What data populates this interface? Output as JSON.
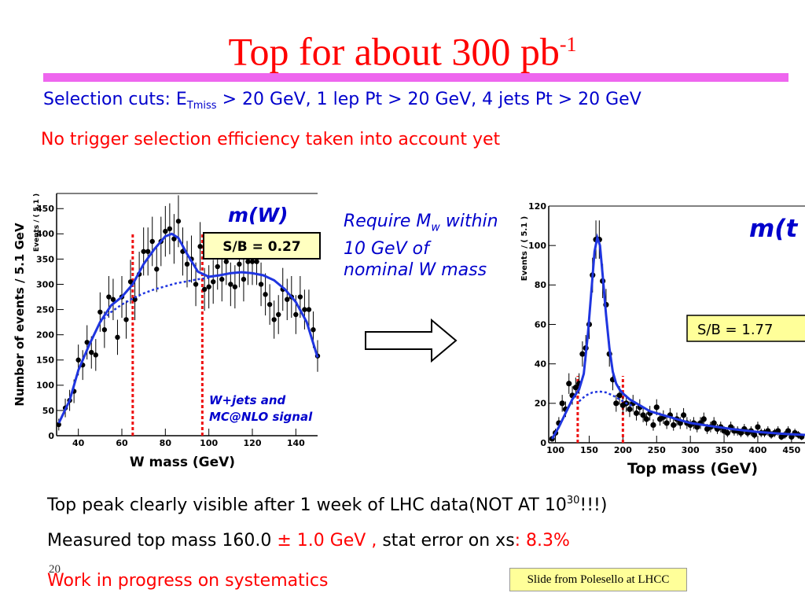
{
  "slide": {
    "title": "Top for about 300 pb",
    "title_superscript": "-1",
    "cuts_prefix": "Selection cuts: E",
    "cuts_subscript": "Tmiss",
    "cuts_suffix": " > 20 GeV, 1 lep Pt > 20 GeV, 4 jets Pt > 20 GeV",
    "trigger_note": "No trigger selection efficiency taken into account yet",
    "require_note": "Require M",
    "require_subscript": "w",
    "require_rest": " within 10 GeV of nominal W mass",
    "bullet_peak_text": "Top peak clearly visible after 1 week of LHC data(NOT AT 10",
    "bullet_peak_exp": "30",
    "bullet_peak_end": "!!!)",
    "bullet_mass_prefix": "Measured top mass 160.0 ",
    "bullet_mass_error": "± 1.0 GeV ,",
    "bullet_mass_mid": " stat error on xs",
    "bullet_mass_value": ": 8.3%",
    "bullet_work": "Work in progress on systematics",
    "slide_number": "20",
    "credit": "Slide from Polesello at LHCC"
  },
  "colors": {
    "title": "#ff0000",
    "rule": "#ee66ee",
    "blue_text": "#0000cc",
    "fit_line": "#1f35e0",
    "cut_line": "#ee1111",
    "label_box": "#ffffc0",
    "sb_box_bg": "#ffff99"
  },
  "chart_data": [
    {
      "type": "scatter",
      "title": "m(W)",
      "xlabel": "W mass (GeV)",
      "ylabel": "Number of events / 5.1 GeV",
      "ylabel_small": "Events / ( 5.1 )",
      "xlim": [
        30,
        150
      ],
      "ylim": [
        0,
        480
      ],
      "xticks": [
        40,
        60,
        80,
        100,
        120,
        140
      ],
      "yticks": [
        0,
        50,
        100,
        150,
        200,
        250,
        300,
        350,
        400,
        450
      ],
      "sb_label": "S/B = 0.27",
      "legend_line1": "W+jets and",
      "legend_line2": "MC@NLO signal",
      "cut_lines": [
        65,
        97
      ],
      "points": [
        [
          31,
          22
        ],
        [
          34,
          55
        ],
        [
          36,
          70
        ],
        [
          38,
          88
        ],
        [
          40,
          150
        ],
        [
          42,
          140
        ],
        [
          44,
          185
        ],
        [
          46,
          165
        ],
        [
          48,
          160
        ],
        [
          50,
          245
        ],
        [
          52,
          210
        ],
        [
          54,
          275
        ],
        [
          56,
          270
        ],
        [
          58,
          195
        ],
        [
          60,
          275
        ],
        [
          62,
          230
        ],
        [
          64,
          305
        ],
        [
          66,
          270
        ],
        [
          68,
          320
        ],
        [
          70,
          365
        ],
        [
          72,
          365
        ],
        [
          74,
          385
        ],
        [
          76,
          330
        ],
        [
          78,
          385
        ],
        [
          80,
          405
        ],
        [
          82,
          410
        ],
        [
          84,
          390
        ],
        [
          86,
          425
        ],
        [
          88,
          365
        ],
        [
          90,
          340
        ],
        [
          92,
          350
        ],
        [
          94,
          300
        ],
        [
          96,
          375
        ],
        [
          98,
          290
        ],
        [
          100,
          295
        ],
        [
          102,
          305
        ],
        [
          104,
          335
        ],
        [
          106,
          310
        ],
        [
          108,
          345
        ],
        [
          110,
          300
        ],
        [
          112,
          295
        ],
        [
          114,
          340
        ],
        [
          116,
          310
        ],
        [
          118,
          345
        ],
        [
          120,
          345
        ],
        [
          122,
          345
        ],
        [
          124,
          300
        ],
        [
          126,
          280
        ],
        [
          128,
          260
        ],
        [
          130,
          230
        ],
        [
          132,
          240
        ],
        [
          134,
          290
        ],
        [
          136,
          270
        ],
        [
          138,
          275
        ],
        [
          140,
          240
        ],
        [
          142,
          275
        ],
        [
          144,
          250
        ],
        [
          146,
          250
        ],
        [
          148,
          210
        ],
        [
          150,
          158
        ]
      ],
      "total_fit": [
        [
          31,
          25
        ],
        [
          36,
          70
        ],
        [
          40,
          130
        ],
        [
          45,
          180
        ],
        [
          50,
          225
        ],
        [
          55,
          258
        ],
        [
          60,
          275
        ],
        [
          65,
          300
        ],
        [
          70,
          340
        ],
        [
          75,
          370
        ],
        [
          80,
          395
        ],
        [
          83,
          400
        ],
        [
          86,
          392
        ],
        [
          90,
          360
        ],
        [
          95,
          325
        ],
        [
          100,
          315
        ],
        [
          105,
          318
        ],
        [
          110,
          322
        ],
        [
          115,
          324
        ],
        [
          120,
          322
        ],
        [
          125,
          318
        ],
        [
          130,
          308
        ],
        [
          135,
          290
        ],
        [
          140,
          265
        ],
        [
          145,
          225
        ],
        [
          150,
          155
        ]
      ],
      "background_fit": [
        [
          50,
          225
        ],
        [
          55,
          245
        ],
        [
          60,
          260
        ],
        [
          65,
          272
        ],
        [
          70,
          282
        ],
        [
          75,
          290
        ],
        [
          80,
          296
        ],
        [
          85,
          302
        ],
        [
          90,
          306
        ],
        [
          95,
          310
        ],
        [
          100,
          313
        ]
      ]
    },
    {
      "type": "scatter",
      "title": "m(t",
      "xlabel": "Top mass (GeV)",
      "ylabel_small": "Events / ( 5.1 )",
      "xlim": [
        90,
        470
      ],
      "ylim": [
        0,
        120
      ],
      "xticks": [
        100,
        150,
        200,
        250,
        300,
        350,
        400,
        450
      ],
      "yticks": [
        0,
        20,
        40,
        60,
        80,
        100,
        120
      ],
      "sb_label": "S/B = 1.77",
      "cut_lines": [
        133,
        200
      ],
      "points": [
        [
          95,
          2
        ],
        [
          100,
          5
        ],
        [
          105,
          10
        ],
        [
          110,
          20
        ],
        [
          115,
          17
        ],
        [
          120,
          30
        ],
        [
          125,
          24
        ],
        [
          130,
          28
        ],
        [
          135,
          30
        ],
        [
          140,
          45
        ],
        [
          145,
          48
        ],
        [
          150,
          60
        ],
        [
          155,
          85
        ],
        [
          160,
          103
        ],
        [
          165,
          103
        ],
        [
          170,
          82
        ],
        [
          175,
          70
        ],
        [
          180,
          45
        ],
        [
          185,
          32
        ],
        [
          190,
          20
        ],
        [
          195,
          24
        ],
        [
          200,
          19
        ],
        [
          205,
          20
        ],
        [
          210,
          17
        ],
        [
          215,
          20
        ],
        [
          220,
          15
        ],
        [
          225,
          18
        ],
        [
          230,
          14
        ],
        [
          235,
          12
        ],
        [
          240,
          15
        ],
        [
          245,
          9
        ],
        [
          250,
          18
        ],
        [
          255,
          12
        ],
        [
          260,
          13
        ],
        [
          265,
          10
        ],
        [
          270,
          14
        ],
        [
          275,
          9
        ],
        [
          280,
          12
        ],
        [
          285,
          10
        ],
        [
          290,
          14
        ],
        [
          295,
          10
        ],
        [
          300,
          9
        ],
        [
          305,
          10
        ],
        [
          310,
          8
        ],
        [
          315,
          10
        ],
        [
          320,
          12
        ],
        [
          325,
          7
        ],
        [
          330,
          8
        ],
        [
          335,
          10
        ],
        [
          340,
          7
        ],
        [
          345,
          8
        ],
        [
          350,
          6
        ],
        [
          355,
          5
        ],
        [
          360,
          8
        ],
        [
          365,
          6
        ],
        [
          370,
          6
        ],
        [
          375,
          5
        ],
        [
          380,
          7
        ],
        [
          385,
          5
        ],
        [
          390,
          6
        ],
        [
          395,
          4
        ],
        [
          400,
          8
        ],
        [
          405,
          5
        ],
        [
          410,
          5
        ],
        [
          415,
          6
        ],
        [
          420,
          4
        ],
        [
          425,
          5
        ],
        [
          430,
          6
        ],
        [
          435,
          3
        ],
        [
          440,
          4
        ],
        [
          445,
          6
        ],
        [
          450,
          3
        ],
        [
          455,
          5
        ],
        [
          460,
          4
        ],
        [
          465,
          3
        ]
      ],
      "total_fit": [
        [
          95,
          2
        ],
        [
          105,
          8
        ],
        [
          115,
          15
        ],
        [
          125,
          22
        ],
        [
          135,
          27
        ],
        [
          142,
          35
        ],
        [
          148,
          55
        ],
        [
          154,
          80
        ],
        [
          158,
          97
        ],
        [
          162,
          104
        ],
        [
          166,
          100
        ],
        [
          170,
          85
        ],
        [
          175,
          65
        ],
        [
          180,
          48
        ],
        [
          185,
          36
        ],
        [
          190,
          30
        ],
        [
          195,
          27
        ],
        [
          200,
          25
        ],
        [
          210,
          22
        ],
        [
          220,
          20
        ],
        [
          240,
          16
        ],
        [
          260,
          14
        ],
        [
          280,
          12
        ],
        [
          300,
          10
        ],
        [
          330,
          8.5
        ],
        [
          360,
          7
        ],
        [
          400,
          5.5
        ],
        [
          440,
          4.5
        ],
        [
          470,
          4
        ]
      ],
      "background_fit": [
        [
          135,
          21
        ],
        [
          145,
          24
        ],
        [
          155,
          25.5
        ],
        [
          165,
          26
        ],
        [
          175,
          25.5
        ],
        [
          185,
          24
        ],
        [
          195,
          22
        ],
        [
          205,
          20
        ],
        [
          215,
          18.5
        ]
      ]
    }
  ]
}
